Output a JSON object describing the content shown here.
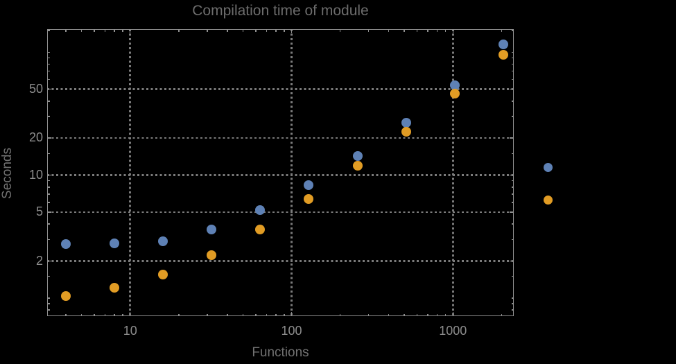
{
  "chart_data": {
    "type": "scatter",
    "title": "Compilation time of module",
    "xlabel": "Functions",
    "ylabel": "Seconds",
    "xscale": "log",
    "yscale": "log",
    "xlim": [
      3.06,
      2382
    ],
    "ylim": [
      0.713,
      154
    ],
    "grid": "major-dotted",
    "legend_position": "right-outside",
    "x": [
      4,
      8,
      16,
      32,
      64,
      128,
      256,
      512,
      1024,
      2048
    ],
    "series": [
      {
        "name": "series-1",
        "color": "#5e81b5",
        "values": [
          2.76,
          2.78,
          2.88,
          3.62,
          5.17,
          8.25,
          14.3,
          26.7,
          54,
          115
        ]
      },
      {
        "name": "series-2",
        "color": "#e19c24",
        "values": [
          1.04,
          1.22,
          1.55,
          2.24,
          3.62,
          6.41,
          11.9,
          22.5,
          46,
          95
        ]
      }
    ],
    "x_ticks": {
      "major": [
        10,
        100,
        1000
      ],
      "labels": [
        "10",
        "100",
        "1000"
      ],
      "minor": [
        4,
        5,
        6,
        7,
        8,
        9,
        20,
        30,
        40,
        50,
        60,
        70,
        80,
        90,
        200,
        300,
        400,
        500,
        600,
        700,
        800,
        900,
        2000
      ]
    },
    "y_ticks": {
      "major": [
        2,
        5,
        10,
        20,
        50
      ],
      "labels": [
        "2",
        "5",
        "10",
        "20",
        "50"
      ],
      "minor": [
        0.8,
        0.9,
        1,
        1.5,
        3,
        4,
        6,
        7,
        8,
        9,
        15,
        30,
        40,
        60,
        70,
        80,
        90,
        100,
        150
      ]
    },
    "gridlines": {
      "x": [
        10,
        100,
        1000
      ],
      "y": [
        2,
        5,
        10,
        20,
        50
      ]
    },
    "legend": {
      "markers": [
        {
          "series": "series-1",
          "color": "#5e81b5",
          "label": ""
        },
        {
          "series": "series-2",
          "color": "#e19c24",
          "label": ""
        }
      ]
    }
  },
  "colors": {
    "background": "#000000",
    "frame": "#8f8f8f",
    "grid": "#7b7b7b",
    "title_text": "#6c6c6c",
    "axis_label_text": "#717171",
    "tick_label_text": "#8d8d8d",
    "series1": "#5e81b5",
    "series2": "#e19c24"
  }
}
